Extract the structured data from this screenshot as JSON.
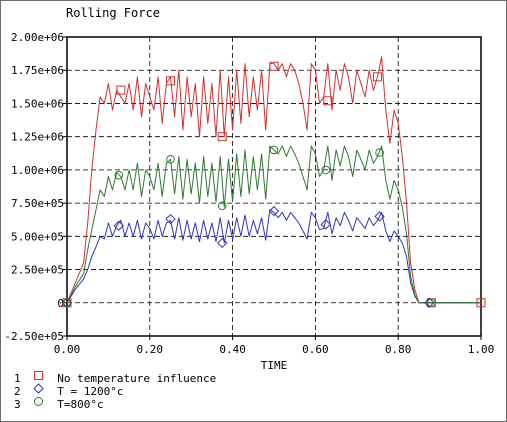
{
  "chart_data": {
    "type": "line",
    "title": "Rolling Force",
    "xlabel": "TIME",
    "ylabel": "",
    "xlim": [
      0.0,
      1.0
    ],
    "ylim": [
      -250000,
      2000000
    ],
    "x_ticks": [
      "0.00",
      "0.20",
      "0.40",
      "0.60",
      "0.80",
      "1.00"
    ],
    "y_ticks": [
      "-2.50e+05",
      "0",
      "2.50e+05",
      "5.00e+05",
      "7.50e+05",
      "1.00e+06",
      "1.25e+06",
      "1.50e+06",
      "1.75e+06",
      "2.00e+06"
    ],
    "grid": true,
    "legend_position": "bottom-left",
    "series": [
      {
        "index": "1",
        "name": "No temperature influence",
        "color": "#cc3333",
        "marker": "square",
        "x": [
          0.0,
          0.02,
          0.04,
          0.05,
          0.06,
          0.07,
          0.08,
          0.09,
          0.1,
          0.11,
          0.12,
          0.13,
          0.14,
          0.15,
          0.16,
          0.17,
          0.18,
          0.19,
          0.2,
          0.21,
          0.22,
          0.23,
          0.24,
          0.25,
          0.26,
          0.27,
          0.28,
          0.29,
          0.3,
          0.31,
          0.32,
          0.33,
          0.34,
          0.35,
          0.36,
          0.37,
          0.38,
          0.39,
          0.4,
          0.41,
          0.42,
          0.43,
          0.44,
          0.45,
          0.46,
          0.47,
          0.48,
          0.49,
          0.5,
          0.51,
          0.52,
          0.53,
          0.54,
          0.55,
          0.56,
          0.57,
          0.58,
          0.59,
          0.6,
          0.61,
          0.62,
          0.63,
          0.64,
          0.65,
          0.66,
          0.67,
          0.68,
          0.69,
          0.7,
          0.71,
          0.72,
          0.73,
          0.74,
          0.75,
          0.76,
          0.77,
          0.78,
          0.79,
          0.8,
          0.81,
          0.82,
          0.83,
          0.84,
          0.85,
          0.86,
          0.87,
          0.88,
          1.0
        ],
        "y": [
          0,
          150000,
          300000,
          600000,
          1000000,
          1300000,
          1550000,
          1500000,
          1650000,
          1450000,
          1600000,
          1550000,
          1500000,
          1650000,
          1450000,
          1700000,
          1400000,
          1650000,
          1550000,
          1450000,
          1700000,
          1350000,
          1650000,
          1700000,
          1400000,
          1750000,
          1300000,
          1700000,
          1400000,
          1650000,
          1250000,
          1700000,
          1350000,
          1650000,
          1250000,
          1750000,
          1250000,
          1700000,
          1300000,
          1750000,
          1350000,
          1800000,
          1400000,
          1700000,
          1450000,
          1750000,
          1300000,
          1800000,
          1800000,
          1750000,
          1800000,
          1700000,
          1800000,
          1750000,
          1650000,
          1500000,
          1300000,
          1800000,
          1750000,
          1500000,
          1550000,
          1800000,
          1450000,
          1750000,
          1600000,
          1800000,
          1700000,
          1500000,
          1750000,
          1650000,
          1550000,
          1750000,
          1600000,
          1700000,
          1850000,
          1450000,
          1200000,
          1450000,
          1350000,
          1100000,
          750000,
          300000,
          100000,
          0,
          0,
          0,
          0,
          0
        ]
      },
      {
        "index": "2",
        "name": "T = 1200°c",
        "color": "#3333bb",
        "marker": "diamond",
        "x": [
          0.0,
          0.02,
          0.04,
          0.05,
          0.06,
          0.07,
          0.08,
          0.09,
          0.1,
          0.11,
          0.12,
          0.13,
          0.14,
          0.15,
          0.16,
          0.17,
          0.18,
          0.19,
          0.2,
          0.21,
          0.22,
          0.23,
          0.24,
          0.25,
          0.26,
          0.27,
          0.28,
          0.29,
          0.3,
          0.31,
          0.32,
          0.33,
          0.34,
          0.35,
          0.36,
          0.37,
          0.38,
          0.39,
          0.4,
          0.41,
          0.42,
          0.43,
          0.44,
          0.45,
          0.46,
          0.47,
          0.48,
          0.49,
          0.5,
          0.51,
          0.52,
          0.53,
          0.54,
          0.55,
          0.56,
          0.57,
          0.58,
          0.59,
          0.6,
          0.61,
          0.62,
          0.63,
          0.64,
          0.65,
          0.66,
          0.67,
          0.68,
          0.69,
          0.7,
          0.71,
          0.72,
          0.73,
          0.74,
          0.75,
          0.76,
          0.77,
          0.78,
          0.79,
          0.8,
          0.81,
          0.82,
          0.83,
          0.84,
          0.85,
          0.86,
          0.87,
          0.88,
          1.0
        ],
        "y": [
          0,
          100000,
          180000,
          250000,
          350000,
          420000,
          500000,
          480000,
          600000,
          500000,
          580000,
          620000,
          500000,
          600000,
          500000,
          620000,
          480000,
          600000,
          560000,
          480000,
          620000,
          500000,
          600000,
          620000,
          480000,
          640000,
          470000,
          620000,
          480000,
          600000,
          460000,
          620000,
          480000,
          600000,
          460000,
          640000,
          450000,
          620000,
          480000,
          640000,
          500000,
          660000,
          500000,
          620000,
          520000,
          640000,
          470000,
          700000,
          680000,
          640000,
          680000,
          620000,
          680000,
          640000,
          600000,
          540000,
          480000,
          680000,
          640000,
          550000,
          560000,
          680000,
          520000,
          640000,
          580000,
          680000,
          620000,
          540000,
          640000,
          600000,
          560000,
          640000,
          580000,
          620000,
          680000,
          540000,
          460000,
          540000,
          500000,
          450000,
          350000,
          150000,
          50000,
          0,
          0,
          0,
          0,
          0
        ]
      },
      {
        "index": "3",
        "name": "T=800°c",
        "color": "#337733",
        "marker": "circle",
        "x": [
          0.0,
          0.02,
          0.04,
          0.05,
          0.06,
          0.07,
          0.08,
          0.09,
          0.1,
          0.11,
          0.12,
          0.13,
          0.14,
          0.15,
          0.16,
          0.17,
          0.18,
          0.19,
          0.2,
          0.21,
          0.22,
          0.23,
          0.24,
          0.25,
          0.26,
          0.27,
          0.28,
          0.29,
          0.3,
          0.31,
          0.32,
          0.33,
          0.34,
          0.35,
          0.36,
          0.37,
          0.38,
          0.39,
          0.4,
          0.41,
          0.42,
          0.43,
          0.44,
          0.45,
          0.46,
          0.47,
          0.48,
          0.49,
          0.5,
          0.51,
          0.52,
          0.53,
          0.54,
          0.55,
          0.56,
          0.57,
          0.58,
          0.59,
          0.6,
          0.61,
          0.62,
          0.63,
          0.64,
          0.65,
          0.66,
          0.67,
          0.68,
          0.69,
          0.7,
          0.71,
          0.72,
          0.73,
          0.74,
          0.75,
          0.76,
          0.77,
          0.78,
          0.79,
          0.8,
          0.81,
          0.82,
          0.83,
          0.84,
          0.85,
          0.86,
          0.87,
          0.88,
          1.0
        ],
        "y": [
          0,
          120000,
          220000,
          400000,
          550000,
          700000,
          850000,
          800000,
          950000,
          850000,
          980000,
          950000,
          850000,
          1000000,
          850000,
          1050000,
          800000,
          1000000,
          950000,
          850000,
          1050000,
          800000,
          1050000,
          1080000,
          820000,
          1100000,
          780000,
          1080000,
          820000,
          1050000,
          750000,
          1100000,
          800000,
          1050000,
          760000,
          1100000,
          720000,
          1080000,
          760000,
          1120000,
          800000,
          1150000,
          820000,
          1100000,
          850000,
          1120000,
          780000,
          1180000,
          1150000,
          1120000,
          1180000,
          1100000,
          1180000,
          1120000,
          1050000,
          950000,
          850000,
          1180000,
          1120000,
          950000,
          1000000,
          1180000,
          920000,
          1150000,
          1030000,
          1180000,
          1100000,
          950000,
          1150000,
          1080000,
          1000000,
          1150000,
          1050000,
          1100000,
          1180000,
          920000,
          780000,
          920000,
          850000,
          720000,
          520000,
          200000,
          60000,
          0,
          0,
          0,
          0,
          0
        ]
      }
    ],
    "markers": [
      {
        "series": "1",
        "points": [
          [
            0.0,
            0
          ],
          [
            0.13,
            1600000
          ],
          [
            0.25,
            1670000
          ],
          [
            0.375,
            1250000
          ],
          [
            0.5,
            1780000
          ],
          [
            0.63,
            1520000
          ],
          [
            0.75,
            1700000
          ],
          [
            0.88,
            0
          ],
          [
            1.0,
            0
          ]
        ]
      },
      {
        "series": "2",
        "points": [
          [
            0.0,
            0
          ],
          [
            0.125,
            580000
          ],
          [
            0.25,
            630000
          ],
          [
            0.375,
            450000
          ],
          [
            0.5,
            690000
          ],
          [
            0.625,
            590000
          ],
          [
            0.755,
            650000
          ],
          [
            0.875,
            0
          ]
        ]
      },
      {
        "series": "3",
        "points": [
          [
            0.0,
            0
          ],
          [
            0.125,
            960000
          ],
          [
            0.25,
            1080000
          ],
          [
            0.375,
            730000
          ],
          [
            0.5,
            1150000
          ],
          [
            0.625,
            1000000
          ],
          [
            0.755,
            1130000
          ],
          [
            0.88,
            0
          ]
        ]
      }
    ]
  }
}
